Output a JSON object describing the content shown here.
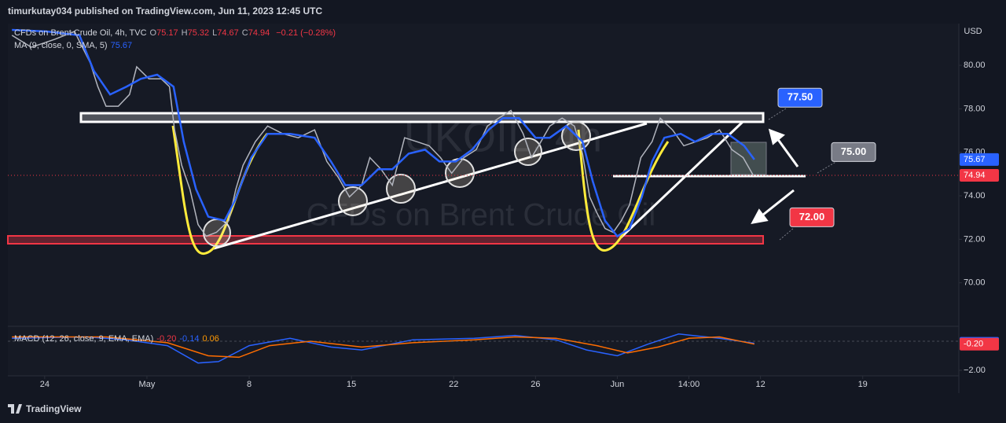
{
  "header": {
    "published": "timurkutay034 published on TradingView.com, Jun 11, 2023 12:45 UTC"
  },
  "footer": {
    "brand": "TradingView"
  },
  "chart_data": [
    {
      "type": "line",
      "title": "CFDs on Brent Crude Oil, 4h, TVC",
      "watermark": "UKOIL, 4h",
      "watermark_sub": "CFDs on Brent Crude Oil",
      "currency": "USD",
      "ohlc": [
        {
          "key": "O",
          "value": 75.17
        },
        {
          "key": "H",
          "value": 75.32
        },
        {
          "key": "L",
          "value": 74.67
        },
        {
          "key": "C",
          "value": 74.94
        }
      ],
      "change": "−0.21 (−0.28%)",
      "indicator": "MA (9, close, 0, SMA, 5)",
      "xlim": [
        -1.8,
        44.7
      ],
      "xticks": [
        {
          "value": 0,
          "label": "24"
        },
        {
          "value": 5,
          "label": "May"
        },
        {
          "value": 10,
          "label": "8"
        },
        {
          "value": 15,
          "label": "15"
        },
        {
          "value": 20,
          "label": "22"
        },
        {
          "value": 24,
          "label": "26"
        },
        {
          "value": 28,
          "label": "Jun"
        },
        {
          "value": 31.5,
          "label": "14:00"
        },
        {
          "value": 35,
          "label": "12"
        },
        {
          "value": 40,
          "label": "19"
        }
      ],
      "ylim": [
        68,
        81.92
      ],
      "yticks": [
        {
          "value": 70,
          "label": "70.00"
        },
        {
          "value": 72,
          "label": "72.00"
        },
        {
          "value": 74,
          "label": "74.00"
        },
        {
          "value": 76,
          "label": "76.00"
        },
        {
          "value": 78,
          "label": "78.00"
        },
        {
          "value": 80,
          "label": "80.00"
        }
      ],
      "series": [
        {
          "name": "CFDs on Brent Crude Oil, 4h, TVC",
          "color": "#b2b5be",
          "x": [
            -1.6,
            -0.65,
            0.5,
            1.46,
            2.23,
            2.6,
            3,
            3.6,
            4.15,
            4.5,
            5.1,
            5.7,
            6.1,
            6.35,
            6.7,
            7.1,
            7.5,
            7.9,
            8.4,
            9,
            9.35,
            9.7,
            10.3,
            10.9,
            11.65,
            12.4,
            13.2,
            13.8,
            14.35,
            14.9,
            15.5,
            15.9,
            16.45,
            17,
            17.6,
            18.2,
            18.8,
            19.35,
            19.9,
            20.5,
            21.1,
            21.65,
            22.2,
            22.8,
            23.4,
            23.8,
            24.15,
            24.7,
            25.3,
            25.9,
            26.3,
            26.65,
            27,
            27.4,
            27.8,
            28.2,
            28.6,
            29.15,
            29.7,
            30.1,
            30.7,
            31.25,
            31.85,
            32.4,
            33,
            33.6,
            34.15,
            34.65
          ],
          "values": [
            81.38,
            80.83,
            81.2,
            81.56,
            80.11,
            79.02,
            78.12,
            78.12,
            78.66,
            79.93,
            79.38,
            79.38,
            79.02,
            77.03,
            75.4,
            74.31,
            72.68,
            72.14,
            72.32,
            72.86,
            74.31,
            75.4,
            76.49,
            77.21,
            76.85,
            76.67,
            77.03,
            75.58,
            74.86,
            73.95,
            74.49,
            75.76,
            75.22,
            74.49,
            76.67,
            76.49,
            76.3,
            75.76,
            75.04,
            75.76,
            76.12,
            77.21,
            77.57,
            77.93,
            76.85,
            75.76,
            76.3,
            77.21,
            77.57,
            77.21,
            75.94,
            73.95,
            73.22,
            72.5,
            72.32,
            72.86,
            73.59,
            75.76,
            76.49,
            77.57,
            77.03,
            76.3,
            76.49,
            76.67,
            77.03,
            76.12,
            75.76,
            74.94
          ]
        },
        {
          "name": "MA (9, close, 0, SMA, 5)",
          "color": "#2962ff",
          "x": [
            -1.6,
            0.1,
            1.7,
            2.4,
            3.2,
            4.0,
            4.7,
            5.5,
            6.3,
            6.8,
            7.4,
            8.0,
            8.8,
            9.3,
            10.1,
            10.9,
            12.0,
            13.2,
            14.0,
            14.7,
            15.5,
            16.3,
            17.0,
            17.8,
            18.6,
            19.3,
            20.1,
            20.9,
            21.7,
            22.4,
            23.2,
            24.0,
            24.7,
            25.5,
            26.3,
            26.8,
            27.4,
            28.0,
            28.6,
            29.2,
            29.7,
            30.3,
            31.1,
            31.8,
            32.6,
            33.4,
            34.2,
            34.7
          ],
          "values": [
            81.63,
            81.56,
            81.38,
            79.75,
            78.66,
            79.02,
            79.38,
            79.57,
            79.02,
            76.49,
            74.31,
            73.04,
            72.86,
            73.77,
            75.76,
            76.85,
            76.85,
            76.67,
            75.58,
            74.49,
            74.49,
            75.22,
            75.22,
            75.94,
            76.12,
            75.58,
            75.58,
            76.12,
            77.03,
            77.57,
            77.57,
            76.67,
            76.67,
            77.21,
            76.49,
            74.67,
            72.86,
            72.14,
            72.5,
            73.95,
            75.58,
            76.67,
            76.85,
            76.49,
            76.85,
            76.85,
            76.3,
            75.67
          ]
        }
      ],
      "annotations": [
        {
          "value": 77.5,
          "label": "77.50",
          "color": "#2962ff"
        },
        {
          "value": 75,
          "label": "75.00",
          "color": "#787b86"
        },
        {
          "value": 72,
          "label": "72.00",
          "color": "#f23645"
        }
      ]
    },
    {
      "type": "line",
      "title": "MACD (12, 26, close, 9, EMA, EMA)",
      "readouts": [
        {
          "value": -0.2,
          "label": "-0.20",
          "color": "#f23645"
        },
        {
          "value": -0.14,
          "label": "-0.14",
          "color": "#2962ff"
        },
        {
          "value": 0.06,
          "label": "0.06",
          "color": "#ff9800"
        }
      ],
      "ylim": [
        -2.38,
        1.03
      ],
      "yticks": [
        {
          "value": -2,
          "label": "−2.00"
        }
      ],
      "series": [
        {
          "color": "#2962ff",
          "x": [
            -1.6,
            2,
            4,
            6,
            7.5,
            8.5,
            10,
            12,
            14,
            15.5,
            18,
            21,
            23,
            25,
            26.5,
            28,
            29.5,
            31,
            33,
            34.7
          ],
          "values": [
            0.2,
            0.3,
            0.1,
            -0.3,
            -1.5,
            -1.4,
            -0.3,
            0.2,
            -0.4,
            -0.6,
            0.1,
            0.2,
            0.4,
            0.1,
            -0.6,
            -1.0,
            -0.2,
            0.5,
            0.2,
            -0.14
          ]
        },
        {
          "color": "#ff6d00",
          "x": [
            -1.6,
            3,
            6,
            8,
            9.5,
            11,
            13,
            15.5,
            18,
            21,
            23,
            25,
            27,
            28.5,
            30,
            31.5,
            33,
            34.7
          ],
          "values": [
            0.3,
            0.3,
            -0.1,
            -1.0,
            -1.1,
            -0.3,
            0.0,
            -0.4,
            -0.1,
            0.1,
            0.3,
            0.2,
            -0.3,
            -0.8,
            -0.4,
            0.2,
            0.3,
            -0.2
          ]
        }
      ]
    }
  ]
}
